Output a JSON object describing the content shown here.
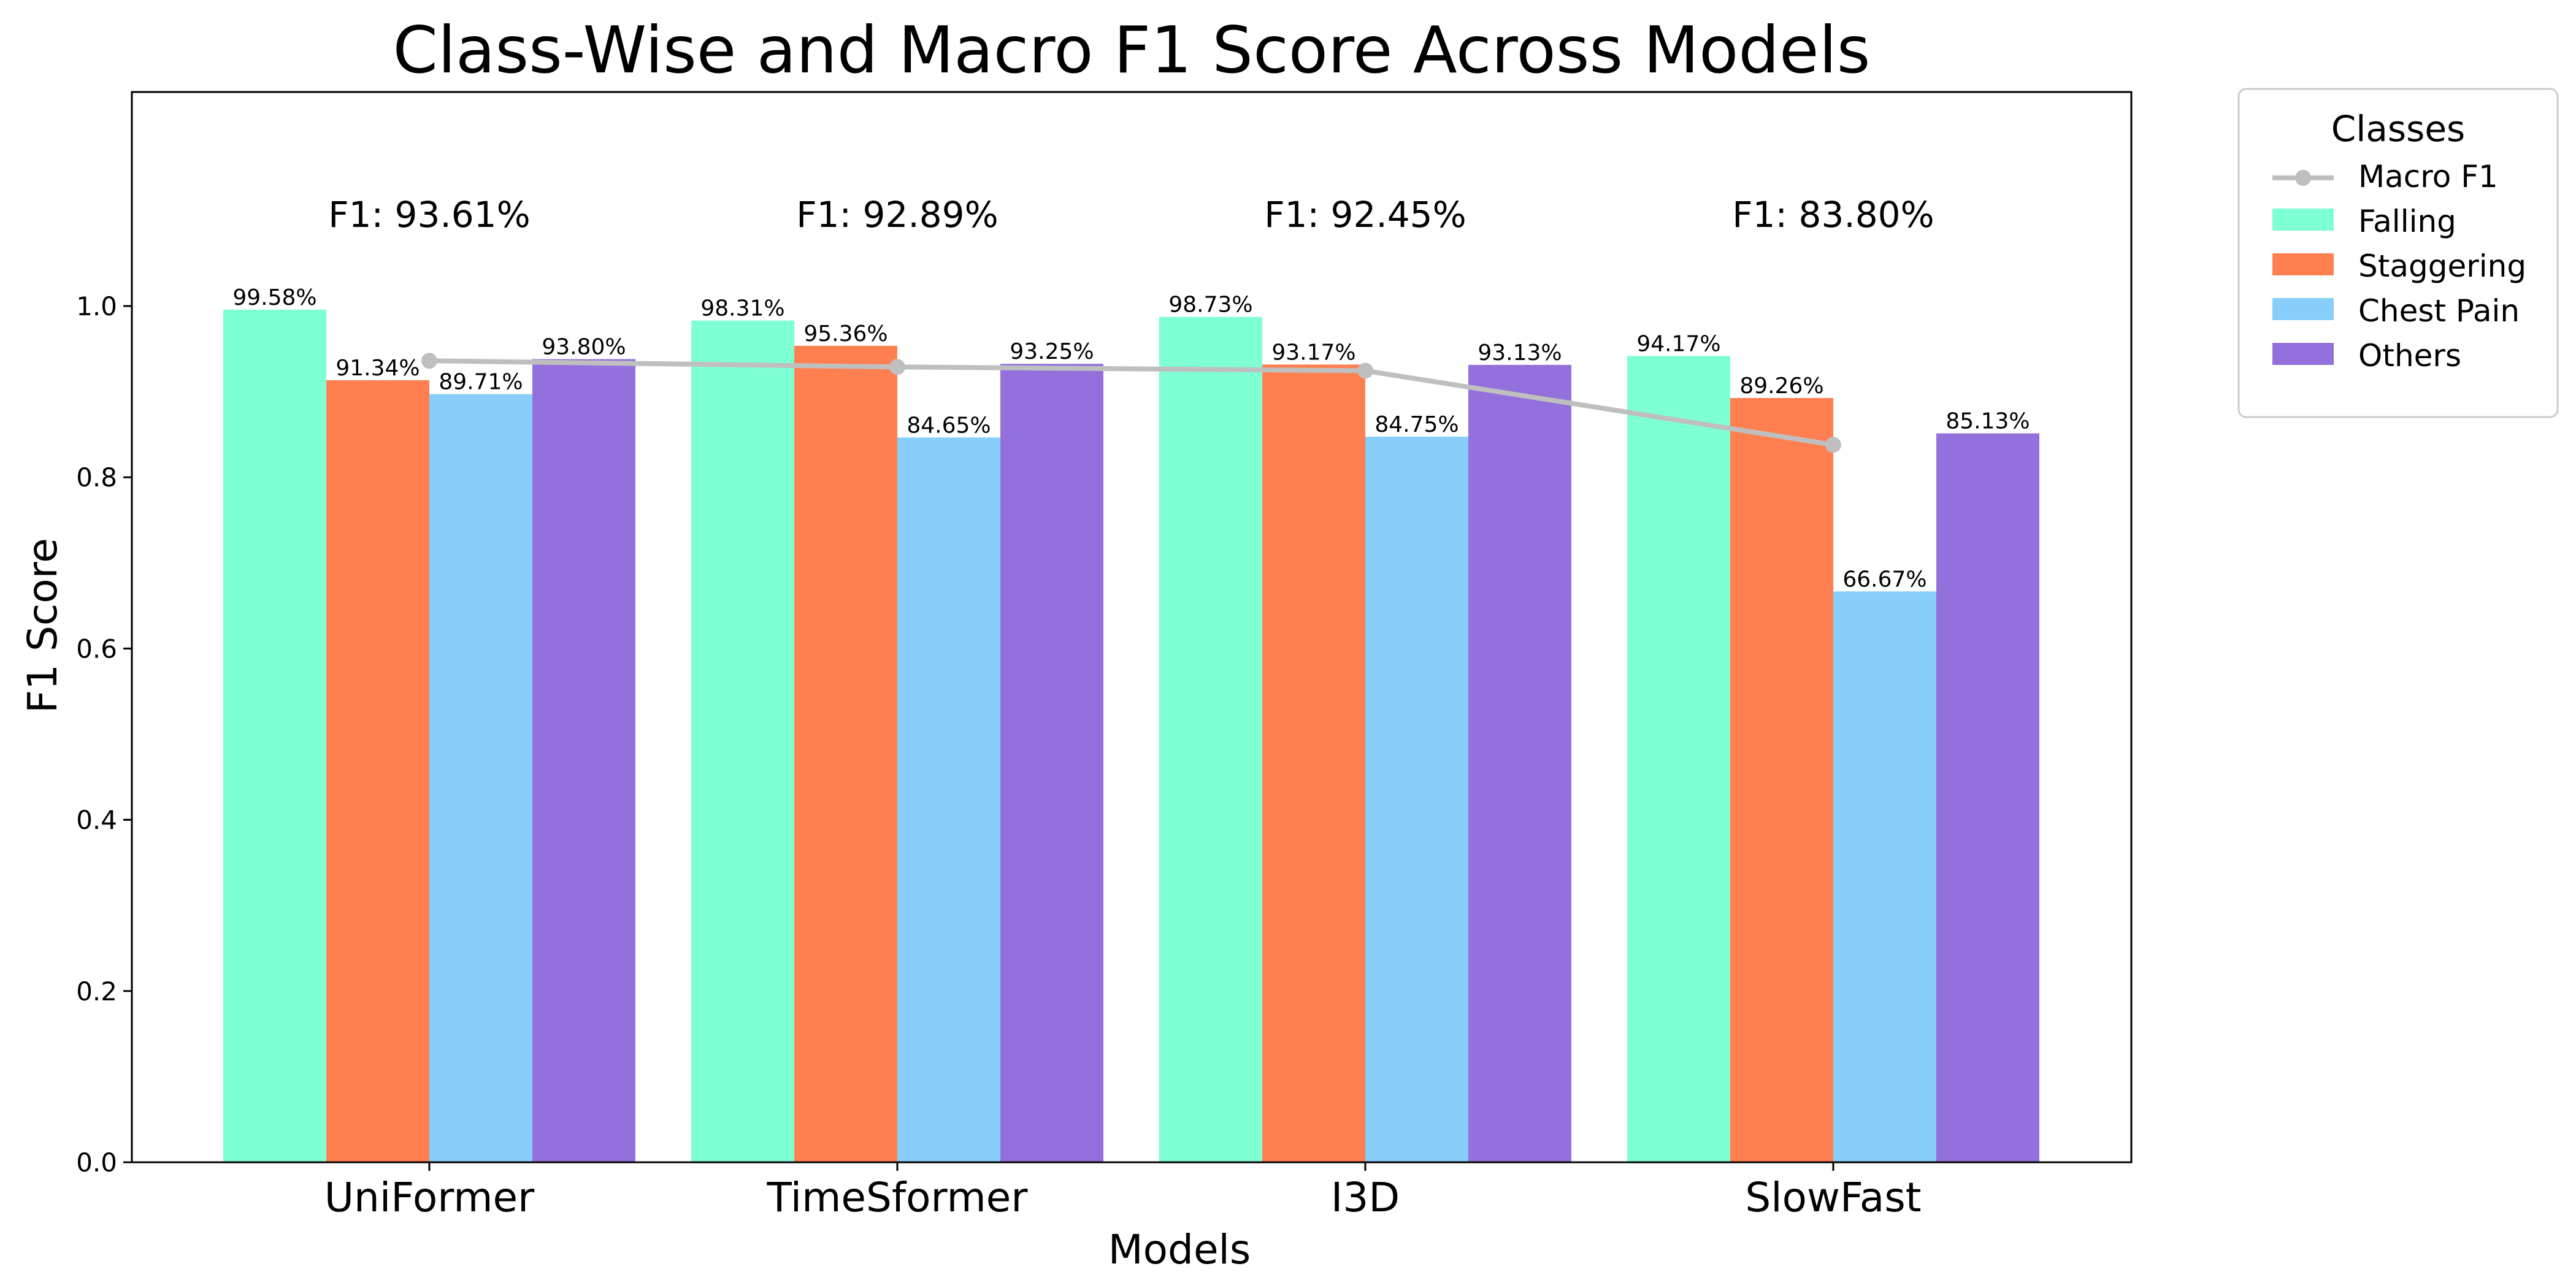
{
  "chart_data": {
    "type": "bar",
    "title": "Class-Wise and Macro F1 Score Across Models",
    "xlabel": "Models",
    "ylabel": "F1 Score",
    "ylim": [
      0,
      1.25
    ],
    "yticks": [
      0.0,
      0.2,
      0.4,
      0.6,
      0.8,
      1.0
    ],
    "ytick_labels": [
      "0.0",
      "0.2",
      "0.4",
      "0.6",
      "0.8",
      "1.0"
    ],
    "categories": [
      "UniFormer",
      "TimeSformer",
      "I3D",
      "SlowFast"
    ],
    "series": [
      {
        "name": "Falling",
        "color": "#7fffd4",
        "values": [
          0.9958,
          0.9831,
          0.9873,
          0.9417
        ],
        "labels": [
          "99.58%",
          "98.31%",
          "98.73%",
          "94.17%"
        ]
      },
      {
        "name": "Staggering",
        "color": "#ff7f50",
        "values": [
          0.9134,
          0.9536,
          0.9317,
          0.8926
        ],
        "labels": [
          "91.34%",
          "95.36%",
          "93.17%",
          "89.26%"
        ]
      },
      {
        "name": "Chest Pain",
        "color": "#87cefa",
        "values": [
          0.8971,
          0.8465,
          0.8475,
          0.6667
        ],
        "labels": [
          "89.71%",
          "84.65%",
          "84.75%",
          "66.67%"
        ]
      },
      {
        "name": "Others",
        "color": "#9370db",
        "values": [
          0.938,
          0.9325,
          0.9313,
          0.8513
        ],
        "labels": [
          "93.80%",
          "93.25%",
          "93.13%",
          "85.13%"
        ]
      }
    ],
    "macro_f1": {
      "name": "Macro F1",
      "type": "line",
      "color": "#bfbfbf",
      "values": [
        0.9361,
        0.9289,
        0.9245,
        0.838
      ],
      "labels": [
        "F1: 93.61%",
        "F1: 92.89%",
        "F1: 92.45%",
        "F1: 83.80%"
      ]
    },
    "legend": {
      "title": "Classes",
      "placement": "outside-top-right"
    },
    "grid": false
  }
}
